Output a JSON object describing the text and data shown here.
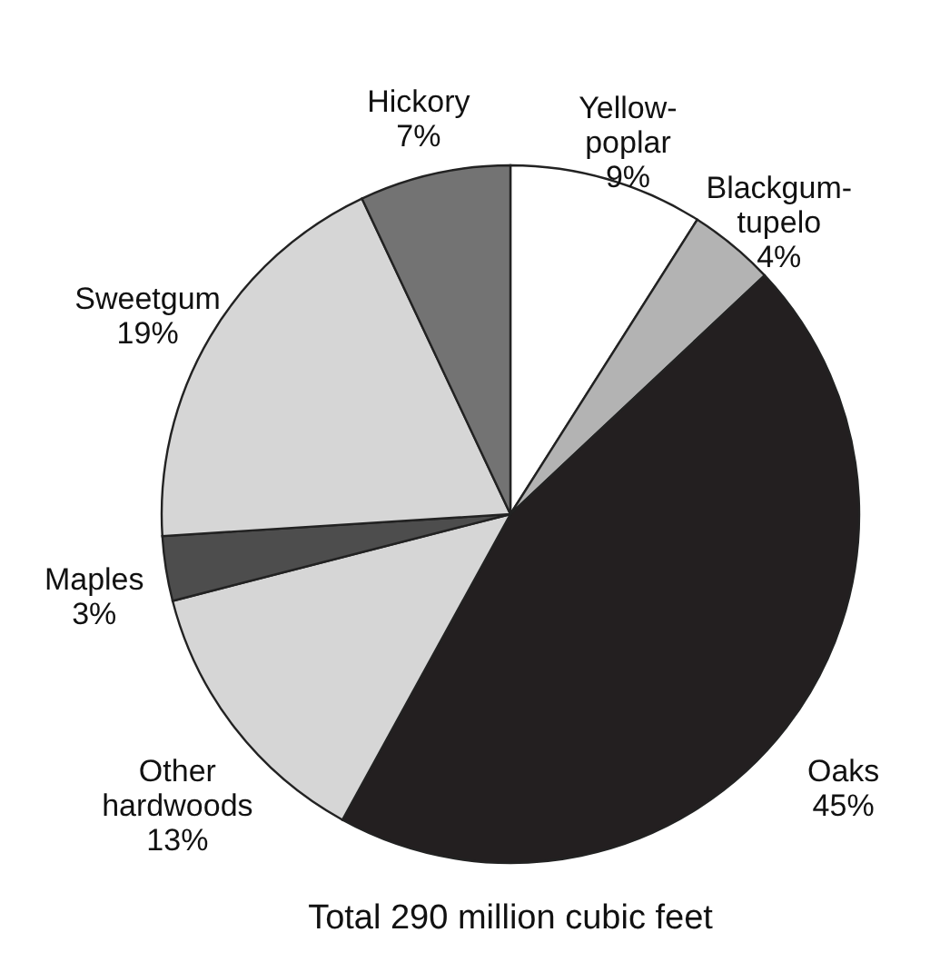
{
  "chart_data": {
    "type": "pie",
    "categories": [
      "Yellow-poplar",
      "Blackgum-tupelo",
      "Oaks",
      "Other hardwoods",
      "Maples",
      "Sweetgum",
      "Hickory"
    ],
    "values": [
      9,
      4,
      45,
      13,
      3,
      19,
      7
    ],
    "colors": [
      "#ffffff",
      "#b3b3b3",
      "#231f20",
      "#d6d6d6",
      "#4d4d4d",
      "#d6d6d6",
      "#737373"
    ],
    "value_labels": [
      "9%",
      "4%",
      "45%",
      "13%",
      "3%",
      "19%",
      "7%"
    ],
    "annotations": [
      "Total 290 million cubic feet"
    ]
  }
}
